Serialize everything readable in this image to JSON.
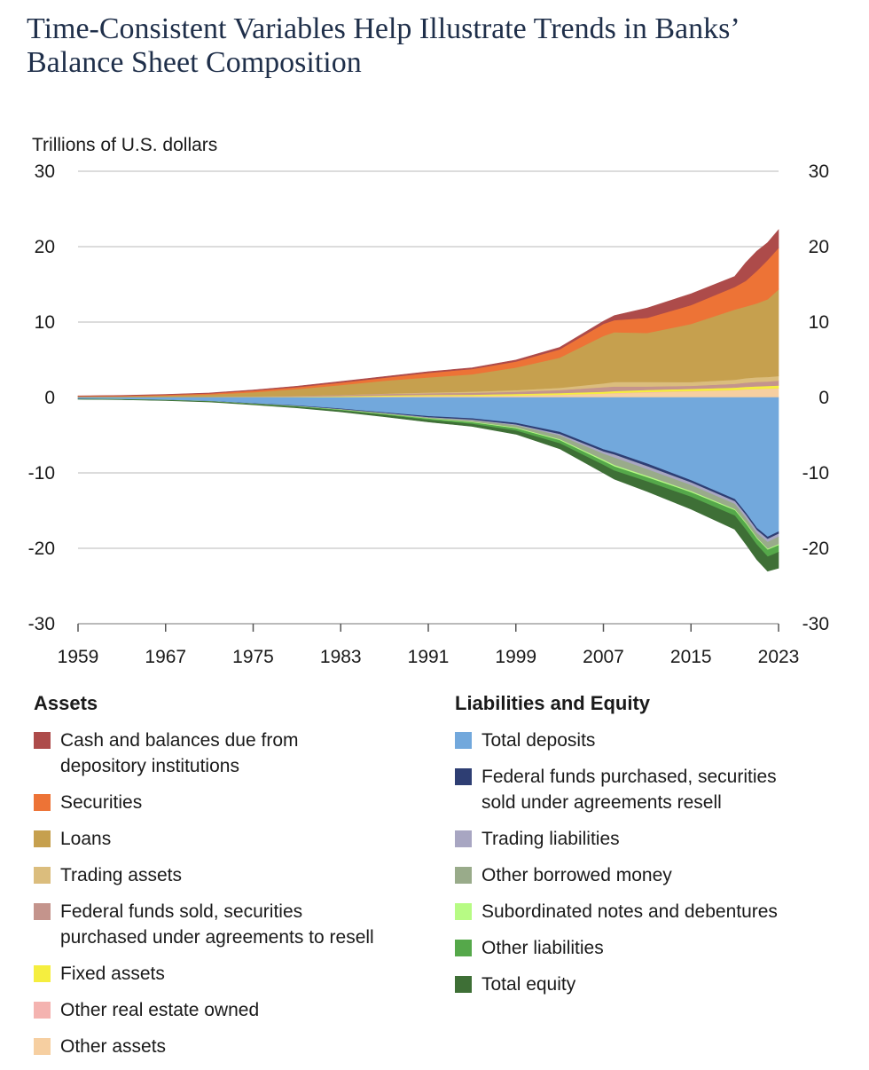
{
  "title_lines": [
    "Time-Consistent Variables Help Illustrate Trends in Banks’",
    "Balance Sheet Composition"
  ],
  "chart_data": {
    "type": "area",
    "subtype": "stacked-diverging",
    "unit_label": "Trillions of U.S. dollars",
    "x_ticks": [
      "1959",
      "1967",
      "1975",
      "1983",
      "1991",
      "1999",
      "2007",
      "2015",
      "2023"
    ],
    "x_range": [
      1959,
      2023
    ],
    "y_ticks": [
      30,
      20,
      10,
      0,
      -10,
      -20,
      -30
    ],
    "ylim": [
      -30,
      30
    ],
    "grid": true,
    "years": [
      1959,
      1963,
      1967,
      1971,
      1975,
      1979,
      1983,
      1987,
      1991,
      1995,
      1999,
      2003,
      2007,
      2008,
      2011,
      2015,
      2019,
      2020,
      2021,
      2022,
      2023
    ],
    "asset_series": [
      {
        "name": "Other assets",
        "color": "#f6cfa1",
        "values": [
          0.01,
          0.01,
          0.02,
          0.03,
          0.04,
          0.06,
          0.08,
          0.12,
          0.15,
          0.18,
          0.25,
          0.35,
          0.5,
          0.55,
          0.65,
          0.8,
          0.95,
          1.05,
          1.1,
          1.15,
          1.2
        ]
      },
      {
        "name": "Other real estate owned",
        "color": "#f4b3b0",
        "values": [
          0,
          0,
          0,
          0,
          0,
          0,
          0,
          0.02,
          0.05,
          0.03,
          0.02,
          0.02,
          0.02,
          0.05,
          0.08,
          0.05,
          0.03,
          0.03,
          0.03,
          0.03,
          0.03
        ]
      },
      {
        "name": "Fixed assets",
        "color": "#f5ee3f",
        "values": [
          0.01,
          0.01,
          0.02,
          0.03,
          0.05,
          0.07,
          0.1,
          0.13,
          0.15,
          0.17,
          0.2,
          0.22,
          0.25,
          0.26,
          0.28,
          0.3,
          0.33,
          0.34,
          0.35,
          0.35,
          0.36
        ]
      },
      {
        "name": "Federal funds sold, securities purchased under agreements to resell",
        "color": "#c4948c",
        "values": [
          0.01,
          0.01,
          0.02,
          0.04,
          0.06,
          0.1,
          0.15,
          0.2,
          0.22,
          0.25,
          0.3,
          0.4,
          0.6,
          0.6,
          0.45,
          0.4,
          0.5,
          0.55,
          0.6,
          0.6,
          0.65
        ]
      },
      {
        "name": "Trading assets",
        "color": "#dbbd7d",
        "values": [
          0,
          0,
          0,
          0,
          0,
          0,
          0.02,
          0.05,
          0.1,
          0.15,
          0.2,
          0.3,
          0.5,
          0.6,
          0.6,
          0.5,
          0.55,
          0.6,
          0.6,
          0.6,
          0.6
        ]
      },
      {
        "name": "Loans",
        "color": "#c6a04e",
        "values": [
          0.1,
          0.13,
          0.2,
          0.3,
          0.55,
          0.9,
          1.3,
          1.7,
          2.0,
          2.3,
          3.0,
          4.0,
          6.3,
          6.6,
          6.5,
          7.7,
          9.3,
          9.5,
          9.8,
          10.3,
          11.5
        ]
      },
      {
        "name": "Securities",
        "color": "#ed7336",
        "values": [
          0.06,
          0.07,
          0.1,
          0.14,
          0.2,
          0.25,
          0.32,
          0.4,
          0.6,
          0.7,
          0.8,
          1.1,
          1.6,
          1.6,
          2.0,
          2.5,
          3.0,
          3.4,
          4.3,
          5.2,
          5.5
        ]
      },
      {
        "name": "Cash and balances due from depository institutions",
        "color": "#ad4b4a",
        "values": [
          0.03,
          0.04,
          0.05,
          0.06,
          0.1,
          0.12,
          0.15,
          0.16,
          0.15,
          0.15,
          0.2,
          0.25,
          0.35,
          0.6,
          1.3,
          1.5,
          1.4,
          2.4,
          2.6,
          2.3,
          2.4
        ]
      }
    ],
    "liability_series": [
      {
        "name": "Total deposits",
        "color": "#72a8dc",
        "values": [
          0.2,
          0.25,
          0.35,
          0.5,
          0.8,
          1.1,
          1.5,
          2.0,
          2.5,
          2.8,
          3.4,
          4.6,
          6.9,
          7.3,
          8.8,
          11.0,
          13.5,
          15.3,
          17.3,
          18.5,
          17.8
        ]
      },
      {
        "name": "Federal funds purchased, securities sold under agreements resell",
        "color": "#2e3e73",
        "values": [
          0.005,
          0.006,
          0.01,
          0.02,
          0.04,
          0.06,
          0.08,
          0.1,
          0.15,
          0.18,
          0.22,
          0.28,
          0.3,
          0.3,
          0.35,
          0.3,
          0.3,
          0.3,
          0.3,
          0.3,
          0.3
        ]
      },
      {
        "name": "Trading liabilities",
        "color": "#a8a6c2",
        "values": [
          0,
          0,
          0,
          0,
          0,
          0.01,
          0.02,
          0.03,
          0.05,
          0.08,
          0.1,
          0.2,
          0.3,
          0.4,
          0.4,
          0.35,
          0.35,
          0.4,
          0.4,
          0.4,
          0.4
        ]
      },
      {
        "name": "Other borrowed money",
        "color": "#99ab8a",
        "values": [
          0,
          0,
          0,
          0.01,
          0.02,
          0.03,
          0.05,
          0.08,
          0.1,
          0.2,
          0.3,
          0.5,
          0.8,
          1.0,
          0.9,
          0.8,
          0.7,
          0.6,
          0.6,
          0.9,
          1.0
        ]
      },
      {
        "name": "Subordinated notes and debentures",
        "color": "#b7fb84",
        "values": [
          0,
          0,
          0,
          0,
          0.005,
          0.01,
          0.02,
          0.04,
          0.05,
          0.07,
          0.1,
          0.12,
          0.17,
          0.18,
          0.17,
          0.15,
          0.14,
          0.14,
          0.13,
          0.13,
          0.13
        ]
      },
      {
        "name": "Other liabilities",
        "color": "#55a84a",
        "values": [
          0.005,
          0.008,
          0.01,
          0.02,
          0.04,
          0.06,
          0.08,
          0.1,
          0.15,
          0.2,
          0.3,
          0.4,
          0.5,
          0.55,
          0.55,
          0.6,
          0.7,
          0.8,
          0.8,
          0.9,
          0.9
        ]
      },
      {
        "name": "Total equity",
        "color": "#3e6f36",
        "values": [
          0.02,
          0.025,
          0.03,
          0.04,
          0.06,
          0.1,
          0.15,
          0.2,
          0.25,
          0.3,
          0.45,
          0.7,
          1.05,
          1.1,
          1.3,
          1.6,
          1.8,
          1.9,
          1.95,
          1.9,
          2.1
        ]
      }
    ]
  },
  "legend": {
    "assets_heading": "Assets",
    "liabilities_heading": "Liabilities and Equity",
    "assets": [
      {
        "label": "Cash and balances due from\ndepository institutions",
        "color": "#ad4b4a"
      },
      {
        "label": "Securities",
        "color": "#ed7336"
      },
      {
        "label": "Loans",
        "color": "#c6a04e"
      },
      {
        "label": "Trading assets",
        "color": "#dbbd7d"
      },
      {
        "label": "Federal funds sold, securities\npurchased under agreements to resell",
        "color": "#c4948c"
      },
      {
        "label": "Fixed assets",
        "color": "#f5ee3f"
      },
      {
        "label": "Other real estate owned",
        "color": "#f4b3b0"
      },
      {
        "label": "Other assets",
        "color": "#f6cfa1"
      }
    ],
    "liabilities": [
      {
        "label": "Total deposits",
        "color": "#72a8dc"
      },
      {
        "label": "Federal funds purchased, securities\nsold under agreements resell",
        "color": "#2e3e73"
      },
      {
        "label": "Trading liabilities",
        "color": "#a8a6c2"
      },
      {
        "label": "Other borrowed money",
        "color": "#99ab8a"
      },
      {
        "label": "Subordinated notes and debentures",
        "color": "#b7fb84"
      },
      {
        "label": "Other liabilities",
        "color": "#55a84a"
      },
      {
        "label": "Total equity",
        "color": "#3e6f36"
      }
    ]
  }
}
